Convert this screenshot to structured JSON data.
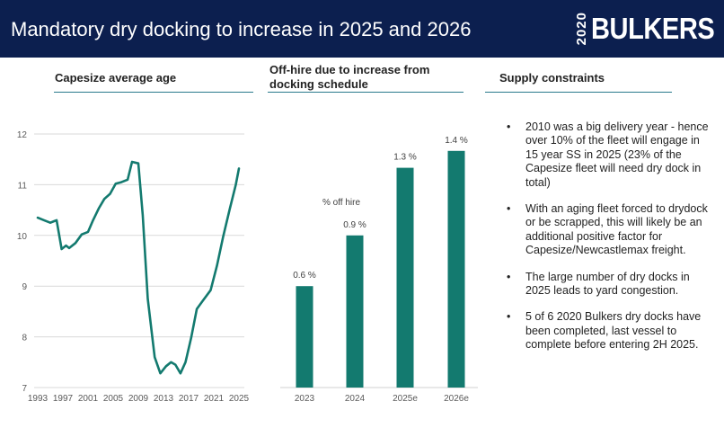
{
  "header": {
    "title": "Mandatory dry docking to increase in 2025 and 2026",
    "logo_year": "2020",
    "logo_name": "BULKERS"
  },
  "sections": {
    "age": "Capesize average age",
    "offhire": "Off-hire due to increase from docking schedule",
    "supply": "Supply constraints"
  },
  "colors": {
    "header_bg": "#0c1f4f",
    "accent": "#137a6f",
    "rule": "#2b7a8c"
  },
  "chart_data": [
    {
      "type": "line",
      "title": "Capesize average age",
      "x_ticks": [
        "1993",
        "1997",
        "2001",
        "2005",
        "2009",
        "2013",
        "2017",
        "2021",
        "2025"
      ],
      "y_ticks": [
        "7",
        "8",
        "9",
        "10",
        "11",
        "12"
      ],
      "ylim": [
        7,
        12.2
      ],
      "xlim": [
        1993,
        2025
      ],
      "grid": true,
      "series": [
        {
          "x": [
            1993,
            1994,
            1995,
            1995.6,
            1996,
            1996.8,
            1997.5,
            1998,
            1999,
            2000,
            2001,
            2001.8,
            2002.7,
            2003.6,
            2004.5,
            2005.4,
            2006.3,
            2007.3,
            2008,
            2009,
            2009.7,
            2010.5,
            2011.6,
            2012.5,
            2013.4,
            2014.2,
            2014.9,
            2015.7,
            2016.5,
            2017.4,
            2018.3,
            2019.3,
            2020.5,
            2021.5,
            2022.5,
            2023.5,
            2024.5,
            2025
          ],
          "y": [
            10.35,
            10.3,
            10.25,
            10.28,
            10.3,
            9.73,
            9.8,
            9.75,
            9.85,
            10.02,
            10.07,
            10.3,
            10.53,
            10.72,
            10.82,
            11.02,
            11.05,
            11.1,
            11.45,
            11.42,
            10.4,
            8.75,
            7.6,
            7.28,
            7.42,
            7.5,
            7.45,
            7.28,
            7.5,
            7.98,
            8.55,
            8.72,
            8.92,
            9.4,
            9.98,
            10.5,
            11.0,
            11.32
          ]
        }
      ]
    },
    {
      "type": "bar",
      "title": "Off-hire due to increase from docking schedule",
      "annotation": "% off hire",
      "categories": [
        "2023",
        "2024",
        "2025e",
        "2026e"
      ],
      "values": [
        0.6,
        0.9,
        1.3,
        1.4
      ],
      "value_labels": [
        "0.6 %",
        "0.9 %",
        "1.3 %",
        "1.4 %"
      ]
    }
  ],
  "supply_bullets": [
    "2010 was a big delivery year - hence over 10% of the fleet will engage in 15 year SS in 2025 (23% of the Capesize fleet will need dry dock in total)",
    "With an aging fleet forced to drydock or be scrapped, this will likely be an additional positive factor for Capesize/Newcastlemax freight.",
    "The large number of dry docks in 2025 leads to yard congestion.",
    "5 of 6 2020 Bulkers dry docks have been completed, last vessel to complete before entering 2H 2025."
  ]
}
